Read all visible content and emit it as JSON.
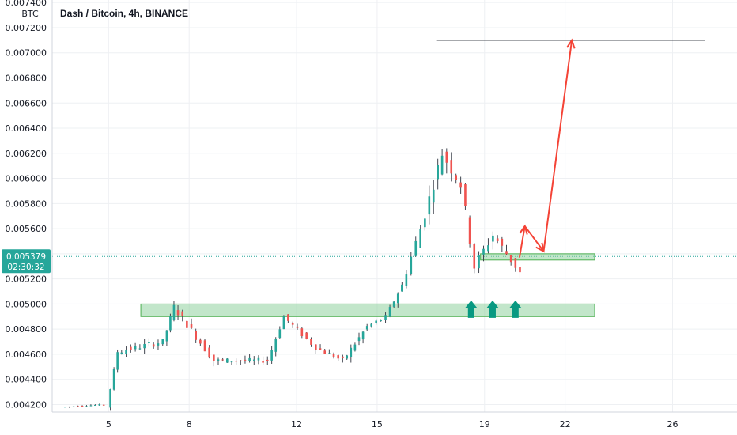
{
  "chart_data": {
    "type": "candlestick",
    "title": "Dash / Bitcoin, 4h, BINANCE",
    "y_unit": "BTC",
    "ylim": [
      0.00414,
      0.00742
    ],
    "y_ticks": [
      "0.007400",
      "0.007200",
      "0.007000",
      "0.006800",
      "0.006600",
      "0.006400",
      "0.006200",
      "0.006000",
      "0.005800",
      "0.005600",
      "0.005400",
      "0.005200",
      "0.005000",
      "0.004800",
      "0.004600",
      "0.004400",
      "0.004200"
    ],
    "x_ticks": [
      "5",
      "8",
      "12",
      "15",
      "19",
      "22",
      "26"
    ],
    "x_tick_days": [
      5,
      8,
      12,
      15,
      19,
      22,
      26
    ],
    "xlim_days": [
      2.9,
      28.4
    ],
    "current_price": "0.005379",
    "countdown": "02:30:32",
    "colors": {
      "up": "#26a69a",
      "down": "#ef5350",
      "arrow": "#f44336",
      "up_marker": "#089981",
      "zone_fill": "#8fd19e",
      "zone_border": "#4caf50",
      "price_badge": "#26a69a"
    },
    "annotations": {
      "support_zone": {
        "x_days": [
          6.2,
          23.1
        ],
        "y": [
          0.0049,
          0.005
        ]
      },
      "retest_zone": {
        "x_days": [
          18.85,
          23.1
        ],
        "y": [
          0.00535,
          0.0054
        ]
      },
      "target_line": {
        "x_days": [
          17.2,
          27.2
        ],
        "y": 0.0071
      },
      "projection_path": [
        [
          20.3,
          0.00537
        ],
        [
          20.5,
          0.00562
        ],
        [
          21.2,
          0.00542
        ],
        [
          22.25,
          0.0071
        ]
      ],
      "up_markers_days": [
        18.5,
        19.3,
        20.15
      ],
      "up_markers_y": 0.00489
    },
    "candles_segments": [
      {
        "start_day": 3.3,
        "end_day": 4.9,
        "start_price": 0.00418,
        "end_price": 0.0042,
        "count": 10,
        "vol": 1e-05
      },
      {
        "start_day": 5.0,
        "end_day": 5.4,
        "start_price": 0.00418,
        "end_price": 0.00462,
        "count": 3,
        "vol": 3e-05
      },
      {
        "start_day": 5.4,
        "end_day": 7.1,
        "start_price": 0.00462,
        "end_price": 0.0047,
        "count": 10,
        "vol": 5e-05
      },
      {
        "start_day": 7.1,
        "end_day": 7.5,
        "start_price": 0.0047,
        "end_price": 0.00498,
        "count": 3,
        "vol": 4e-05
      },
      {
        "start_day": 7.5,
        "end_day": 9.0,
        "start_price": 0.00498,
        "end_price": 0.00455,
        "count": 9,
        "vol": 6e-05
      },
      {
        "start_day": 9.0,
        "end_day": 11.0,
        "start_price": 0.00455,
        "end_price": 0.00455,
        "count": 12,
        "vol": 4e-05
      },
      {
        "start_day": 11.0,
        "end_day": 11.6,
        "start_price": 0.00455,
        "end_price": 0.0049,
        "count": 4,
        "vol": 4e-05
      },
      {
        "start_day": 11.6,
        "end_day": 12.8,
        "start_price": 0.0049,
        "end_price": 0.00465,
        "count": 7,
        "vol": 4e-05
      },
      {
        "start_day": 12.8,
        "end_day": 13.8,
        "start_price": 0.00465,
        "end_price": 0.00455,
        "count": 6,
        "vol": 4e-05
      },
      {
        "start_day": 13.8,
        "end_day": 14.7,
        "start_price": 0.00455,
        "end_price": 0.00482,
        "count": 6,
        "vol": 5e-05
      },
      {
        "start_day": 14.7,
        "end_day": 15.4,
        "start_price": 0.00482,
        "end_price": 0.0049,
        "count": 4,
        "vol": 3e-05
      },
      {
        "start_day": 15.4,
        "end_day": 16.0,
        "start_price": 0.0049,
        "end_price": 0.00515,
        "count": 4,
        "vol": 4e-05
      },
      {
        "start_day": 16.0,
        "end_day": 16.7,
        "start_price": 0.00515,
        "end_price": 0.0056,
        "count": 4,
        "vol": 8e-05
      },
      {
        "start_day": 16.7,
        "end_day": 17.5,
        "start_price": 0.0056,
        "end_price": 0.0062,
        "count": 5,
        "vol": 0.0001
      },
      {
        "start_day": 17.5,
        "end_day": 18.2,
        "start_price": 0.0062,
        "end_price": 0.00595,
        "count": 4,
        "vol": 0.0001
      },
      {
        "start_day": 18.2,
        "end_day": 18.7,
        "start_price": 0.00595,
        "end_price": 0.0053,
        "count": 3,
        "vol": 0.0001
      },
      {
        "start_day": 18.7,
        "end_day": 19.4,
        "start_price": 0.0053,
        "end_price": 0.00555,
        "count": 4,
        "vol": 8e-05
      },
      {
        "start_day": 19.4,
        "end_day": 20.4,
        "start_price": 0.00555,
        "end_price": 0.00525,
        "count": 6,
        "vol": 7e-05
      }
    ]
  }
}
